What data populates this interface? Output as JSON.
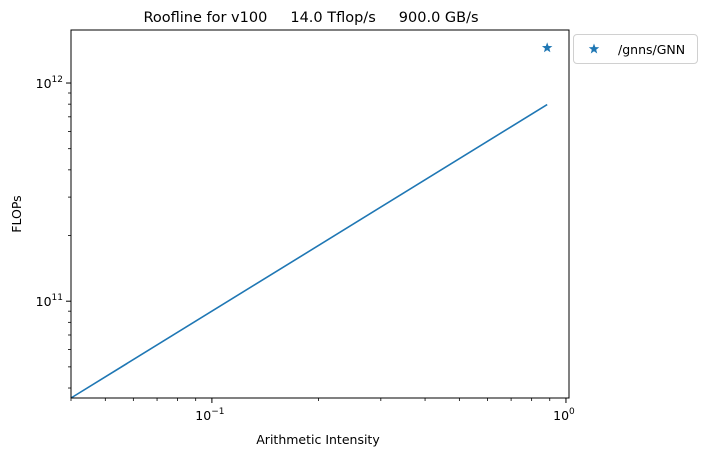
{
  "chart_data": {
    "type": "line",
    "title": "Roofline for v100     14.0 Tflop/s     900.0 GB/s",
    "xlabel": "Arithmetic Intensity",
    "ylabel": "FLOPs",
    "xscale": "log",
    "yscale": "log",
    "xlim": [
      0.04,
      1.02
    ],
    "ylim": [
      36000000000,
      1750000000000
    ],
    "x_major_ticks": [
      {
        "value": 0.1,
        "base": "10",
        "exp": "−1"
      },
      {
        "value": 1,
        "base": "10",
        "exp": "0"
      }
    ],
    "y_major_ticks": [
      {
        "value": 100000000000,
        "base": "10",
        "exp": "11"
      },
      {
        "value": 1000000000000,
        "base": "10",
        "exp": "12"
      }
    ],
    "grid": false,
    "legend_placement": "outside upper right",
    "series": [
      {
        "kind": "line",
        "color": "#1f77b4",
        "x": [
          0.04,
          0.885
        ],
        "y": [
          36000000000,
          796500000000
        ]
      },
      {
        "kind": "scatter",
        "marker": "star",
        "name": "/gnns/GNN",
        "color": "#1f77b4",
        "x": [
          0.885
        ],
        "y": [
          1450000000000
        ]
      }
    ]
  }
}
